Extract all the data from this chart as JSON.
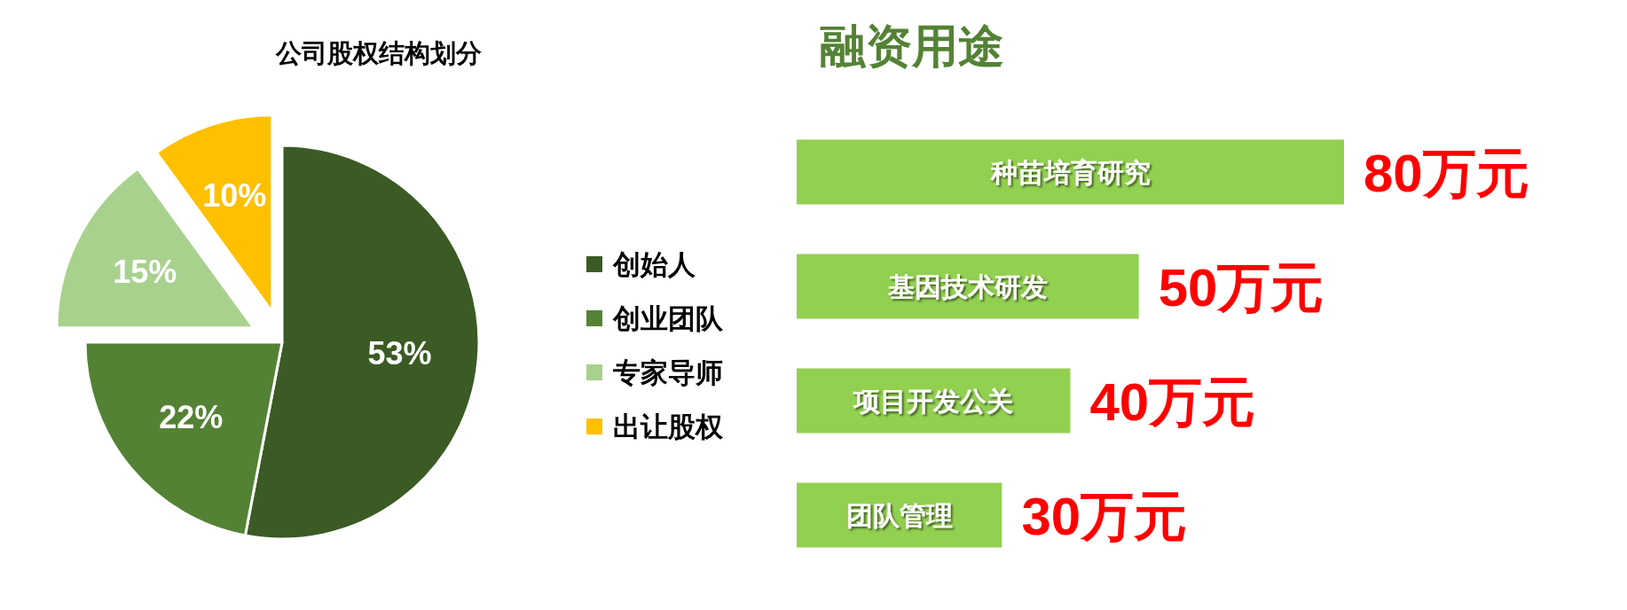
{
  "chart_data": [
    {
      "type": "pie",
      "title": "公司股权结构划分",
      "categories": [
        "创始人",
        "创业团队",
        "专家导师",
        "出让股权"
      ],
      "values": [
        53,
        22,
        15,
        10
      ],
      "colors": [
        "#3b5a24",
        "#548235",
        "#a9d18e",
        "#ffc000"
      ],
      "value_labels": [
        "53%",
        "22%",
        "15%",
        "10%"
      ],
      "legend": "right"
    },
    {
      "type": "bar",
      "orientation": "horizontal",
      "title": "融资用途",
      "categories": [
        "种苗培育研究",
        "基因技术研发",
        "项目开发公关",
        "团队管理"
      ],
      "values": [
        80,
        50,
        40,
        30
      ],
      "color": "#92d050",
      "value_labels": [
        "80万元",
        "50万元",
        "40万元",
        "30万元"
      ]
    }
  ]
}
